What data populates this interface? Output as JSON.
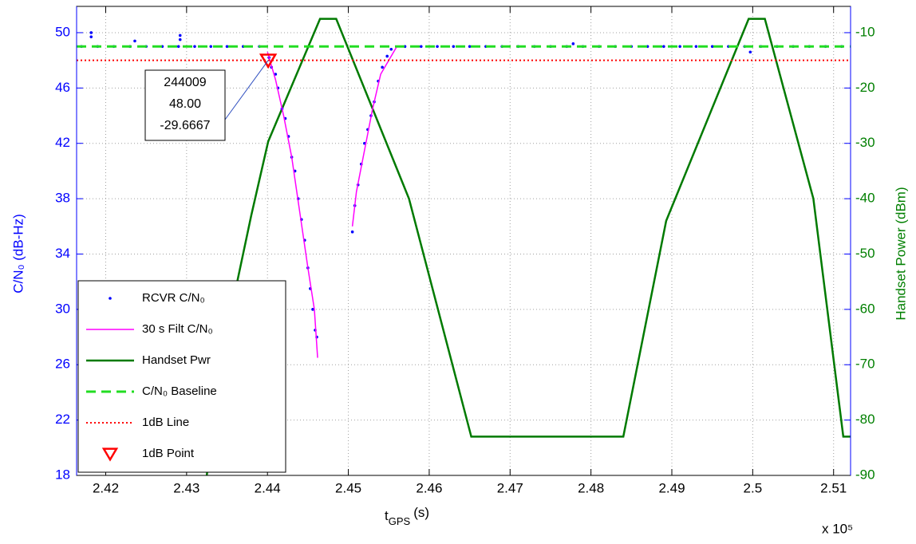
{
  "chart_data": {
    "type": "line",
    "xlabel": "t",
    "xlabel_sub": "GPS",
    "xlabel_unit": "(s)",
    "x_multiplier": "x 10⁵",
    "ylabel": "C/N₀ (dB-Hz)",
    "y2label": "Handset Power (dBm)",
    "xlim": [
      2.4164,
      2.5121
    ],
    "xticks": [
      2.42,
      2.43,
      2.44,
      2.45,
      2.46,
      2.47,
      2.48,
      2.49,
      2.5,
      2.51
    ],
    "ylim": [
      18,
      51.9
    ],
    "yticks": [
      18,
      22,
      26,
      30,
      34,
      38,
      42,
      46,
      50
    ],
    "y2lim": [
      -90,
      -5.25
    ],
    "y2ticks": [
      -90,
      -80,
      -70,
      -60,
      -50,
      -40,
      -30,
      -20,
      -10
    ],
    "grid": true,
    "legend": "lower left",
    "ycolor": "#0000ff",
    "y2color": "#007f00",
    "series": [
      {
        "name": "RCVR C/N₀",
        "color": "#0000ff",
        "style": "dots",
        "axis": "y",
        "x": [
          2.417,
          2.4182,
          2.4182,
          2.419,
          2.421,
          2.423,
          2.4236,
          2.425,
          2.427,
          2.429,
          2.4292,
          2.4292,
          2.431,
          2.433,
          2.435,
          2.437,
          2.439,
          2.4402,
          2.4405,
          2.441,
          2.4413,
          2.4418,
          2.4422,
          2.4426,
          2.443,
          2.4434,
          2.4438,
          2.4442,
          2.4446,
          2.445,
          2.4453,
          2.4456,
          2.4459,
          2.4461,
          2.4505,
          2.4508,
          2.4512,
          2.4516,
          2.452,
          2.4524,
          2.4528,
          2.4532,
          2.4537,
          2.4542,
          2.4548,
          2.4553,
          2.457,
          2.459,
          2.461,
          2.463,
          2.465,
          2.467,
          2.469,
          2.471,
          2.473,
          2.475,
          2.477,
          2.4778,
          2.479,
          2.481,
          2.483,
          2.485,
          2.487,
          2.489,
          2.491,
          2.493,
          2.495,
          2.497,
          2.4997,
          2.499,
          2.501,
          2.503,
          2.505,
          2.507,
          2.509,
          2.511
        ],
        "values": [
          49,
          50,
          49.7,
          49,
          49,
          49,
          49.4,
          49,
          49,
          49,
          49.8,
          49.5,
          49,
          49,
          49,
          49,
          49,
          48.2,
          47.5,
          47,
          46,
          44.5,
          43.8,
          42.5,
          41,
          40,
          38,
          36.5,
          35,
          33,
          31.5,
          30,
          28.5,
          28,
          35.6,
          37.5,
          39,
          40.5,
          42,
          43,
          44,
          45,
          46.5,
          47.5,
          48.3,
          48.8,
          49,
          49,
          49,
          49,
          49,
          49,
          49,
          49,
          49,
          49,
          49,
          49.2,
          49,
          49,
          49,
          49,
          49,
          49,
          49,
          49,
          49,
          49,
          48.6,
          49,
          49,
          49,
          49,
          49,
          49,
          49
        ]
      },
      {
        "name": "30 s Filt C/N₀",
        "color": "#ff00ff",
        "style": "line",
        "axis": "y",
        "x": [
          2.44,
          2.441,
          2.442,
          2.443,
          2.444,
          2.445,
          2.4458,
          2.4462,
          null,
          2.4505,
          2.451,
          2.452,
          2.453,
          2.454,
          2.455,
          2.456
        ],
        "values": [
          48.6,
          46.6,
          44,
          41,
          37,
          33,
          30,
          26.5,
          null,
          36,
          38.5,
          41.5,
          44.5,
          47,
          48,
          49
        ]
      },
      {
        "name": "Handset Pwr",
        "color": "#007a00",
        "style": "line",
        "axis": "y2",
        "x": [
          2.4325,
          2.4338,
          2.438,
          2.44009,
          2.4465,
          2.4485,
          2.4575,
          2.4652,
          2.484,
          2.4893,
          2.4995,
          2.5015,
          2.5075,
          2.5112,
          2.5121
        ],
        "values": [
          -90,
          -72,
          -43,
          -29.6667,
          -7.5,
          -7.5,
          -40,
          -83,
          -83,
          -44,
          -7.5,
          -7.5,
          -40,
          -83,
          -83
        ]
      },
      {
        "name": "C/N₀ Baseline",
        "color": "#22dd22",
        "style": "dashed",
        "axis": "y",
        "x": [
          2.4164,
          2.5121
        ],
        "values": [
          49,
          49
        ]
      },
      {
        "name": "1dB Line",
        "color": "#ff0000",
        "style": "dotted",
        "axis": "y",
        "x": [
          2.4164,
          2.5121
        ],
        "values": [
          48,
          48
        ]
      },
      {
        "name": "1dB Point",
        "color": "#ff0000",
        "style": "marker",
        "axis": "y",
        "x": [
          2.44009
        ],
        "values": [
          48
        ]
      }
    ],
    "annotation": {
      "lines": [
        "244009",
        "48.00",
        "-29.6667"
      ]
    }
  }
}
